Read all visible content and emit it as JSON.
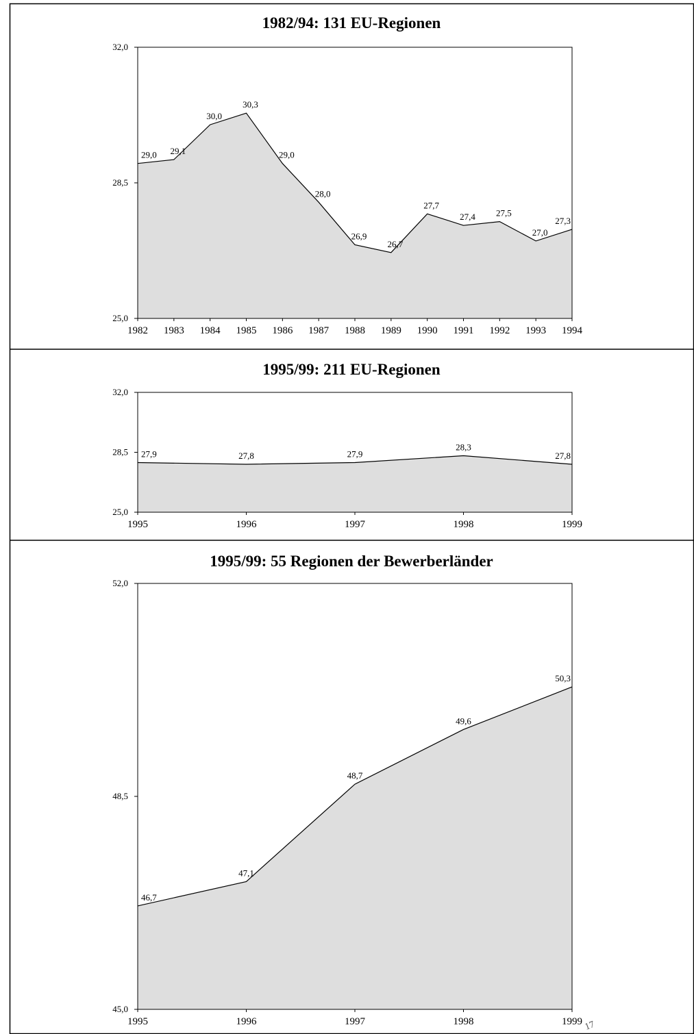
{
  "page_mark": "17",
  "chart_data": [
    {
      "type": "area",
      "title": "1982/94: 131 EU-Regionen",
      "xlabel": "",
      "ylabel": "",
      "x": [
        "1982",
        "1983",
        "1984",
        "1985",
        "1986",
        "1987",
        "1988",
        "1989",
        "1990",
        "1991",
        "1992",
        "1993",
        "1994"
      ],
      "values": [
        29.0,
        29.1,
        30.0,
        30.3,
        29.0,
        28.0,
        26.9,
        26.7,
        27.7,
        27.4,
        27.5,
        27.0,
        27.3
      ],
      "value_labels": [
        "29,0",
        "29,1",
        "30,0",
        "30,3",
        "29,0",
        "28,0",
        "26,9",
        "26,7",
        "27,7",
        "27,4",
        "27,5",
        "27,0",
        "27,3"
      ],
      "ylim": [
        25.0,
        32.0
      ],
      "y_ticks": [
        25.0,
        28.5,
        32.0
      ],
      "y_tick_labels": [
        "25,0",
        "28,5",
        "32,0"
      ],
      "fill_color": "#dedede",
      "line_color": "#000000",
      "grid": false,
      "legend": "none"
    },
    {
      "type": "area",
      "title": "1995/99: 211 EU-Regionen",
      "xlabel": "",
      "ylabel": "",
      "x": [
        "1995",
        "1996",
        "1997",
        "1998",
        "1999"
      ],
      "values": [
        27.9,
        27.8,
        27.9,
        28.3,
        27.8
      ],
      "value_labels": [
        "27,9",
        "27,8",
        "27,9",
        "28,3",
        "27,8"
      ],
      "ylim": [
        25.0,
        32.0
      ],
      "y_ticks": [
        25.0,
        28.5,
        32.0
      ],
      "y_tick_labels": [
        "25,0",
        "28,5",
        "32,0"
      ],
      "fill_color": "#dedede",
      "line_color": "#000000",
      "grid": false,
      "legend": "none"
    },
    {
      "type": "area",
      "title": "1995/99: 55 Regionen der Bewerberländer",
      "xlabel": "",
      "ylabel": "",
      "x": [
        "1995",
        "1996",
        "1997",
        "1998",
        "1999"
      ],
      "values": [
        46.7,
        47.1,
        48.7,
        49.6,
        50.3
      ],
      "value_labels": [
        "46,7",
        "47,1",
        "48,7",
        "49,6",
        "50,3"
      ],
      "ylim": [
        45.0,
        52.0
      ],
      "y_ticks": [
        45.0,
        48.5,
        52.0
      ],
      "y_tick_labels": [
        "45,0",
        "48,5",
        "52,0"
      ],
      "fill_color": "#dedede",
      "line_color": "#000000",
      "grid": false,
      "legend": "none"
    }
  ]
}
